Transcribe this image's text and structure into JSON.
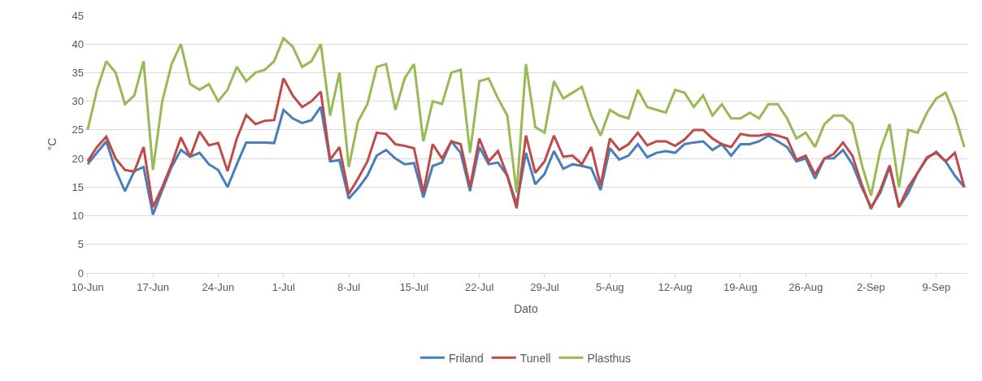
{
  "chart_data": {
    "type": "line",
    "xlabel": "Dato",
    "ylabel": "°C",
    "x": [
      "--06-10",
      "--06-11",
      "--06-12",
      "--06-13",
      "--06-14",
      "--06-15",
      "--06-16",
      "--06-17",
      "--06-18",
      "--06-19",
      "--06-20",
      "--06-21",
      "--06-22",
      "--06-23",
      "--06-24",
      "--06-25",
      "--06-26",
      "--06-27",
      "--06-28",
      "--06-29",
      "--06-30",
      "--07-01",
      "--07-02",
      "--07-03",
      "--07-04",
      "--07-05",
      "--07-06",
      "--07-07",
      "--07-08",
      "--07-09",
      "--07-10",
      "--07-11",
      "--07-12",
      "--07-13",
      "--07-14",
      "--07-15",
      "--07-16",
      "--07-17",
      "--07-18",
      "--07-19",
      "--07-20",
      "--07-21",
      "--07-22",
      "--07-23",
      "--07-24",
      "--07-25",
      "--07-26",
      "--07-27",
      "--07-28",
      "--07-29",
      "--07-30",
      "--07-31",
      "--08-01",
      "--08-02",
      "--08-03",
      "--08-04",
      "--08-05",
      "--08-06",
      "--08-07",
      "--08-08",
      "--08-09",
      "--08-10",
      "--08-11",
      "--08-12",
      "--08-13",
      "--08-14",
      "--08-15",
      "--08-16",
      "--08-17",
      "--08-18",
      "--08-19",
      "--08-20",
      "--08-21",
      "--08-22",
      "--08-23",
      "--08-24",
      "--08-25",
      "--08-26",
      "--08-27",
      "--08-28",
      "--08-29",
      "--08-30",
      "--08-31",
      "--09-01",
      "--09-02",
      "--09-03",
      "--09-04",
      "--09-05",
      "--09-06",
      "--09-07",
      "--09-08",
      "--09-09",
      "--09-10",
      "--09-11",
      "--09-12"
    ],
    "series": [
      {
        "name": "Friland",
        "color": "#4a7ebb",
        "values": [
          19,
          21,
          23,
          18,
          14.3,
          17.8,
          18.5,
          10.2,
          14.5,
          18.5,
          21.5,
          20.3,
          21,
          19,
          18,
          15,
          19,
          22.8,
          22.8,
          22.8,
          22.7,
          28.5,
          27,
          26.2,
          26.7,
          29,
          19.5,
          19.7,
          13,
          14.8,
          17,
          20.5,
          21.5,
          20,
          19,
          19.2,
          13.2,
          18.7,
          19.3,
          23,
          21,
          14.3,
          22,
          19,
          19.3,
          17,
          12,
          21,
          15.5,
          17.3,
          21.3,
          18.2,
          19,
          18.7,
          18.3,
          14.5,
          21.8,
          19.8,
          20.5,
          22.5,
          20.2,
          21,
          21.3,
          21,
          22.5,
          22.8,
          23,
          21.5,
          22.5,
          20.5,
          22.5,
          22.5,
          23,
          24,
          23,
          22,
          19.5,
          20,
          16.5,
          20,
          20,
          21.5,
          19,
          15,
          11.5,
          14,
          18.5,
          11.5,
          14,
          17.5,
          20,
          21.2,
          19.5,
          17,
          15
        ]
      },
      {
        "name": "Tunell",
        "color": "#be4b48",
        "values": [
          19.5,
          22,
          23.8,
          20,
          18,
          17.7,
          22,
          11.5,
          15,
          19,
          23.7,
          20.3,
          24.7,
          22.3,
          22.7,
          17.8,
          23.5,
          27.6,
          26,
          26.6,
          26.7,
          34,
          31,
          29,
          30,
          31.7,
          19.8,
          22,
          13.8,
          16.5,
          19.5,
          24.5,
          24.3,
          22.5,
          22.2,
          21.8,
          14,
          22.5,
          20,
          23,
          22.5,
          15,
          23.5,
          19.5,
          21.3,
          17,
          11.3,
          24,
          17.5,
          19.5,
          24,
          20.3,
          20.5,
          19,
          22,
          15.3,
          23.5,
          21.5,
          22.5,
          24.5,
          22.3,
          23,
          23,
          22.2,
          23.3,
          25,
          25,
          23.5,
          22.5,
          22,
          24.3,
          24,
          24,
          24.3,
          24,
          23.5,
          19.8,
          20.5,
          17.2,
          20,
          20.8,
          22.8,
          20.5,
          15.5,
          11.2,
          14.5,
          18.8,
          11.5,
          15,
          17.5,
          20.2,
          21,
          19.5,
          21,
          15
        ]
      },
      {
        "name": "Plasthus",
        "color": "#98b954",
        "values": [
          25,
          32,
          37,
          35,
          29.5,
          31,
          37,
          18,
          30,
          36.5,
          40,
          33,
          32,
          33,
          30,
          32,
          36,
          33.5,
          35,
          35.5,
          37,
          41,
          39.5,
          36,
          37,
          40,
          27.5,
          35,
          18.5,
          26.5,
          29.5,
          36,
          36.5,
          28.5,
          34,
          36.5,
          23,
          30,
          29.5,
          35,
          35.5,
          21,
          33.5,
          34,
          30.5,
          27.5,
          14,
          36.5,
          25.5,
          24.5,
          33.5,
          30.5,
          31.5,
          32.5,
          27.5,
          24,
          28.5,
          27.5,
          27,
          32,
          29,
          28.5,
          28,
          32,
          31.5,
          29,
          31,
          27.5,
          29.5,
          27,
          27,
          28,
          27,
          29.5,
          29.5,
          27,
          23.5,
          24.5,
          22,
          26,
          27.5,
          27.5,
          26,
          19,
          13.5,
          21.5,
          26,
          15,
          25,
          24.5,
          28,
          30.5,
          31.5,
          27.5,
          22
        ]
      }
    ],
    "xlim": [
      "--06-09T16:00",
      "--09-12T08:00"
    ],
    "xticks": [
      {
        "value": "--06-10",
        "label": "10-Jun"
      },
      {
        "value": "--06-17",
        "label": "17-Jun"
      },
      {
        "value": "--06-24",
        "label": "24-Jun"
      },
      {
        "value": "--07-01",
        "label": "1-Jul"
      },
      {
        "value": "--07-08",
        "label": "8-Jul"
      },
      {
        "value": "--07-15",
        "label": "15-Jul"
      },
      {
        "value": "--07-22",
        "label": "22-Jul"
      },
      {
        "value": "--07-29",
        "label": "29-Jul"
      },
      {
        "value": "--08-05",
        "label": "5-Aug"
      },
      {
        "value": "--08-12",
        "label": "12-Aug"
      },
      {
        "value": "--08-19",
        "label": "19-Aug"
      },
      {
        "value": "--08-26",
        "label": "26-Aug"
      },
      {
        "value": "--09-02",
        "label": "2-Sep"
      },
      {
        "value": "--09-09",
        "label": "9-Sep"
      }
    ],
    "ylim": [
      0,
      45
    ],
    "yticks": [
      0,
      5,
      10,
      15,
      20,
      25,
      30,
      35,
      40,
      45
    ],
    "grid": "y",
    "legend": "bottom",
    "marker": "none",
    "line_style": "solid"
  }
}
